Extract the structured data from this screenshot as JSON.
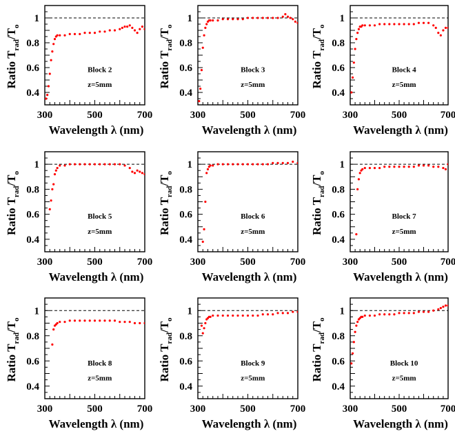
{
  "figure": {
    "panels_grid": {
      "rows": 3,
      "cols": 3
    }
  },
  "chart_data": [
    {
      "type": "scatter",
      "label": "Block 2",
      "sublabel": "z=5mm",
      "xlabel": "Wavelength λ (nm)",
      "ylabel": {
        "main": "Ratio T",
        "sub": "rad",
        "mid": "/T",
        "sub2": "o"
      },
      "xlim": [
        300,
        700
      ],
      "ylim": [
        0.3,
        1.1
      ],
      "xticks": [
        300,
        500,
        700
      ],
      "yticks": [
        0.4,
        0.6,
        0.8,
        1
      ],
      "reference_line": 1,
      "marker_color": "#ff0000",
      "x": [
        305,
        310,
        315,
        320,
        325,
        330,
        335,
        340,
        345,
        350,
        360,
        380,
        400,
        420,
        440,
        460,
        480,
        500,
        520,
        540,
        560,
        580,
        600,
        610,
        620,
        630,
        640,
        650,
        660,
        670,
        680,
        690,
        700
      ],
      "y": [
        0.35,
        0.38,
        0.45,
        0.55,
        0.66,
        0.73,
        0.79,
        0.83,
        0.85,
        0.86,
        0.86,
        0.86,
        0.87,
        0.87,
        0.87,
        0.88,
        0.88,
        0.88,
        0.89,
        0.89,
        0.9,
        0.9,
        0.91,
        0.92,
        0.93,
        0.93,
        0.94,
        0.92,
        0.9,
        0.88,
        0.91,
        0.93,
        0.91
      ]
    },
    {
      "type": "scatter",
      "label": "Block 3",
      "sublabel": "z=5mm",
      "xlabel": "Wavelength λ (nm)",
      "ylabel": {
        "main": "Ratio T",
        "sub": "rad",
        "mid": "/T",
        "sub2": "o"
      },
      "xlim": [
        300,
        700
      ],
      "ylim": [
        0.3,
        1.1
      ],
      "xticks": [
        300,
        500,
        700
      ],
      "yticks": [
        0.4,
        0.6,
        0.8,
        1
      ],
      "reference_line": 1,
      "marker_color": "#ff0000",
      "x": [
        305,
        310,
        315,
        320,
        325,
        330,
        335,
        340,
        345,
        350,
        360,
        380,
        400,
        420,
        440,
        460,
        480,
        500,
        520,
        540,
        560,
        580,
        600,
        620,
        640,
        650,
        660,
        670,
        680,
        690,
        700
      ],
      "y": [
        0.33,
        0.43,
        0.58,
        0.76,
        0.86,
        0.92,
        0.95,
        0.97,
        0.98,
        0.98,
        0.98,
        0.98,
        0.99,
        0.99,
        0.99,
        0.99,
        0.99,
        1.0,
        1.0,
        1.0,
        1.0,
        1.0,
        1.0,
        1.0,
        1.01,
        1.03,
        1.01,
        1.0,
        0.99,
        0.97,
        0.96
      ]
    },
    {
      "type": "scatter",
      "label": "Block 4",
      "sublabel": "z=5mm",
      "xlabel": "Wavelength λ (nm)",
      "ylabel": {
        "main": "Ratio T",
        "sub": "rad",
        "mid": "/T",
        "sub2": "o"
      },
      "xlim": [
        300,
        700
      ],
      "ylim": [
        0.3,
        1.1
      ],
      "xticks": [
        300,
        500,
        700
      ],
      "yticks": [
        0.4,
        0.6,
        0.8,
        1
      ],
      "reference_line": 1,
      "marker_color": "#ff0000",
      "x": [
        305,
        310,
        315,
        320,
        325,
        330,
        335,
        340,
        345,
        350,
        360,
        380,
        400,
        420,
        440,
        460,
        480,
        500,
        520,
        540,
        560,
        580,
        600,
        620,
        640,
        650,
        660,
        670,
        680,
        690,
        700
      ],
      "y": [
        0.4,
        0.52,
        0.64,
        0.75,
        0.83,
        0.88,
        0.91,
        0.93,
        0.93,
        0.94,
        0.94,
        0.94,
        0.94,
        0.95,
        0.95,
        0.95,
        0.95,
        0.95,
        0.95,
        0.95,
        0.95,
        0.96,
        0.96,
        0.96,
        0.94,
        0.92,
        0.88,
        0.86,
        0.9,
        0.92,
        0.92
      ]
    },
    {
      "type": "scatter",
      "label": "Block 5",
      "sublabel": "z=5mm",
      "xlabel": "Wavelength λ (nm)",
      "ylabel": {
        "main": "Ratio T",
        "sub": "rad",
        "mid": "/T",
        "sub2": "o"
      },
      "xlim": [
        300,
        700
      ],
      "ylim": [
        0.3,
        1.1
      ],
      "xticks": [
        300,
        500,
        700
      ],
      "yticks": [
        0.4,
        0.6,
        0.8,
        1
      ],
      "reference_line": 1,
      "marker_color": "#ff0000",
      "x": [
        320,
        325,
        330,
        335,
        340,
        345,
        350,
        360,
        380,
        400,
        420,
        440,
        460,
        480,
        500,
        520,
        540,
        560,
        580,
        600,
        620,
        640,
        650,
        660,
        670,
        680,
        690,
        700
      ],
      "y": [
        0.64,
        0.71,
        0.8,
        0.84,
        0.92,
        0.95,
        0.97,
        0.99,
        0.99,
        1.0,
        1.0,
        1.0,
        1.0,
        1.0,
        1.0,
        1.0,
        1.0,
        1.0,
        1.0,
        1.0,
        0.99,
        0.97,
        0.94,
        0.93,
        0.95,
        0.94,
        0.93,
        0.92
      ]
    },
    {
      "type": "scatter",
      "label": "Block 6",
      "sublabel": "z=5mm",
      "xlabel": "Wavelength λ (nm)",
      "ylabel": {
        "main": "Ratio T",
        "sub": "rad",
        "mid": "/T",
        "sub2": "o"
      },
      "xlim": [
        300,
        700
      ],
      "ylim": [
        0.3,
        1.1
      ],
      "xticks": [
        300,
        500,
        700
      ],
      "yticks": [
        0.4,
        0.6,
        0.8,
        1
      ],
      "reference_line": 1,
      "marker_color": "#ff0000",
      "x": [
        320,
        325,
        330,
        335,
        340,
        345,
        350,
        360,
        380,
        400,
        420,
        440,
        460,
        480,
        500,
        520,
        540,
        560,
        580,
        600,
        620,
        640,
        660,
        680,
        700
      ],
      "y": [
        0.38,
        0.48,
        0.7,
        0.93,
        0.96,
        0.98,
        0.99,
        0.99,
        1.0,
        1.0,
        1.0,
        1.0,
        1.0,
        1.0,
        1.0,
        1.0,
        1.0,
        1.0,
        1.0,
        1.01,
        1.01,
        1.01,
        1.01,
        1.02,
        1.01
      ]
    },
    {
      "type": "scatter",
      "label": "Block 7",
      "sublabel": "z=5mm",
      "xlabel": "Wavelength λ (nm)",
      "ylabel": {
        "main": "Ratio T",
        "sub": "rad",
        "mid": "/T",
        "sub2": "o"
      },
      "xlim": [
        300,
        700
      ],
      "ylim": [
        0.3,
        1.1
      ],
      "xticks": [
        300,
        500,
        700
      ],
      "yticks": [
        0.4,
        0.6,
        0.8,
        1
      ],
      "reference_line": 1,
      "marker_color": "#ff0000",
      "x": [
        325,
        330,
        335,
        340,
        345,
        350,
        360,
        380,
        400,
        420,
        440,
        460,
        480,
        500,
        520,
        540,
        560,
        580,
        600,
        620,
        640,
        660,
        680,
        690,
        700
      ],
      "y": [
        0.44,
        0.8,
        0.88,
        0.93,
        0.95,
        0.96,
        0.97,
        0.97,
        0.97,
        0.97,
        0.98,
        0.98,
        0.98,
        0.98,
        0.98,
        0.98,
        0.98,
        0.99,
        0.99,
        0.99,
        0.98,
        0.98,
        0.97,
        0.96,
        1.0
      ]
    },
    {
      "type": "scatter",
      "label": "Block 8",
      "sublabel": "z=5mm",
      "xlabel": "Wavelength λ (nm)",
      "ylabel": {
        "main": "Ratio T",
        "sub": "rad",
        "mid": "/T",
        "sub2": "o"
      },
      "xlim": [
        300,
        700
      ],
      "ylim": [
        0.3,
        1.1
      ],
      "xticks": [
        300,
        500,
        700
      ],
      "yticks": [
        0.4,
        0.6,
        0.8,
        1
      ],
      "reference_line": 1,
      "marker_color": "#ff0000",
      "x": [
        330,
        335,
        340,
        345,
        350,
        360,
        380,
        400,
        420,
        440,
        460,
        480,
        500,
        520,
        540,
        560,
        580,
        600,
        620,
        640,
        660,
        680,
        700
      ],
      "y": [
        0.73,
        0.85,
        0.88,
        0.89,
        0.9,
        0.91,
        0.91,
        0.92,
        0.92,
        0.92,
        0.92,
        0.92,
        0.92,
        0.92,
        0.92,
        0.92,
        0.92,
        0.91,
        0.91,
        0.91,
        0.9,
        0.9,
        0.9
      ]
    },
    {
      "type": "scatter",
      "label": "Block 9",
      "sublabel": "z=5mm",
      "xlabel": "Wavelength λ (nm)",
      "ylabel": {
        "main": "Ratio T",
        "sub": "rad",
        "mid": "/T",
        "sub2": "o"
      },
      "xlim": [
        300,
        700
      ],
      "ylim": [
        0.3,
        1.1
      ],
      "xticks": [
        300,
        500,
        700
      ],
      "yticks": [
        0.4,
        0.6,
        0.8,
        1
      ],
      "reference_line": 1,
      "marker_color": "#ff0000",
      "x": [
        315,
        320,
        325,
        330,
        335,
        340,
        345,
        350,
        360,
        380,
        400,
        420,
        440,
        460,
        480,
        500,
        520,
        540,
        560,
        580,
        600,
        620,
        640,
        660,
        680,
        700
      ],
      "y": [
        0.88,
        0.82,
        0.86,
        0.9,
        0.93,
        0.94,
        0.95,
        0.95,
        0.96,
        0.96,
        0.96,
        0.96,
        0.96,
        0.96,
        0.96,
        0.96,
        0.96,
        0.96,
        0.97,
        0.97,
        0.97,
        0.98,
        0.98,
        0.98,
        0.99,
        0.99
      ]
    },
    {
      "type": "scatter",
      "label": "Block 10",
      "sublabel": "z=5mm",
      "xlabel": "Wavelength λ (nm)",
      "ylabel": {
        "main": "Ratio T",
        "sub": "rad",
        "mid": "/T",
        "sub2": "o"
      },
      "xlim": [
        300,
        700
      ],
      "ylim": [
        0.3,
        1.1
      ],
      "xticks": [
        300,
        500,
        700
      ],
      "yticks": [
        0.4,
        0.6,
        0.8,
        1
      ],
      "reference_line": 1,
      "marker_color": "#ff0000",
      "x": [
        305,
        310,
        315,
        320,
        325,
        330,
        335,
        340,
        345,
        350,
        360,
        380,
        400,
        420,
        440,
        460,
        480,
        500,
        520,
        540,
        560,
        580,
        600,
        620,
        640,
        660,
        670,
        680,
        690,
        700
      ],
      "y": [
        0.58,
        0.66,
        0.75,
        0.83,
        0.88,
        0.91,
        0.93,
        0.94,
        0.95,
        0.95,
        0.96,
        0.96,
        0.96,
        0.97,
        0.97,
        0.97,
        0.97,
        0.98,
        0.98,
        0.98,
        0.98,
        0.99,
        0.99,
        0.99,
        1.0,
        1.01,
        1.02,
        1.03,
        1.04,
        1.04
      ]
    }
  ]
}
